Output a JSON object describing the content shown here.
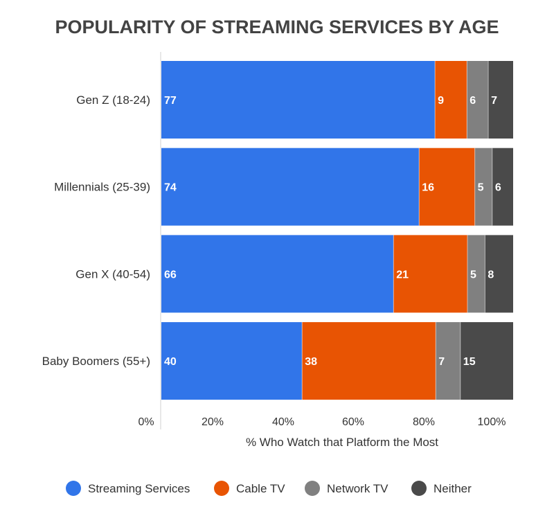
{
  "chart_data": {
    "type": "bar",
    "orientation": "horizontal",
    "stacked": true,
    "title": "POPULARITY OF STREAMING SERVICES BY AGE",
    "xlabel": "% Who Watch that Platform the Most",
    "ylabel": "",
    "xlim": [
      0,
      100
    ],
    "xticks": [
      "0%",
      "20%",
      "40%",
      "60%",
      "80%",
      "100%"
    ],
    "categories": [
      "Gen Z (18-24)",
      "Millennials (25-39)",
      "Gen X (40-54)",
      "Baby Boomers (55+)"
    ],
    "series": [
      {
        "name": "Streaming Services",
        "color": "#3175e9",
        "values": [
          77,
          74,
          66,
          40
        ]
      },
      {
        "name": "Cable TV",
        "color": "#e85403",
        "values": [
          9,
          16,
          21,
          38
        ]
      },
      {
        "name": "Network TV",
        "color": "#808080",
        "values": [
          6,
          5,
          5,
          7
        ]
      },
      {
        "name": "Neither",
        "color": "#4a4a4a",
        "values": [
          7,
          6,
          8,
          15
        ]
      }
    ],
    "legend_position": "bottom",
    "grid": false
  }
}
